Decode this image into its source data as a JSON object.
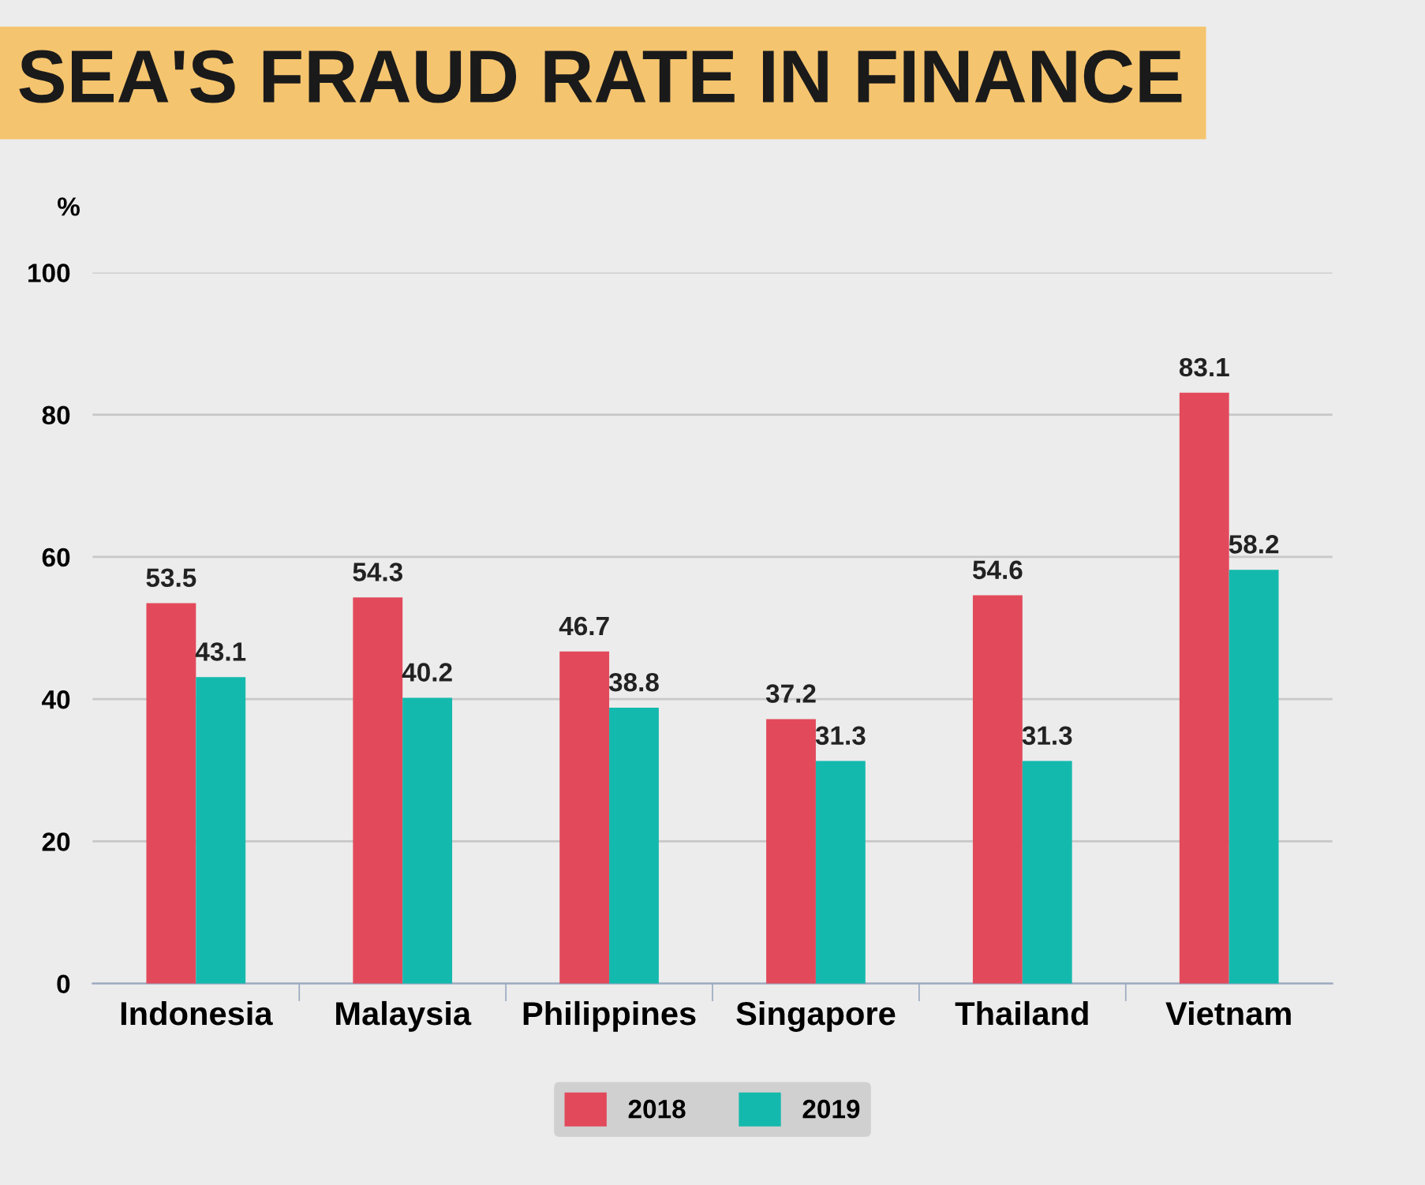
{
  "chart_data": {
    "type": "bar",
    "title": "SEA'S FRAUD RATE IN FINANCE",
    "ylabel": "%",
    "categories": [
      "Indonesia",
      "Malaysia",
      "Philippines",
      "Singapore",
      "Thailand",
      "Vietnam"
    ],
    "series": [
      {
        "name": "2018",
        "color": "#e24a5b",
        "values": [
          53.5,
          54.3,
          46.7,
          37.2,
          54.6,
          83.1
        ]
      },
      {
        "name": "2019",
        "color": "#14b9ad",
        "values": [
          43.1,
          40.2,
          38.8,
          31.3,
          31.3,
          58.2
        ]
      }
    ],
    "ylim": [
      0,
      100
    ],
    "yticks": [
      0,
      20,
      40,
      60,
      80,
      100
    ],
    "grid": "y",
    "legend": "bottom",
    "data_labels": true
  }
}
